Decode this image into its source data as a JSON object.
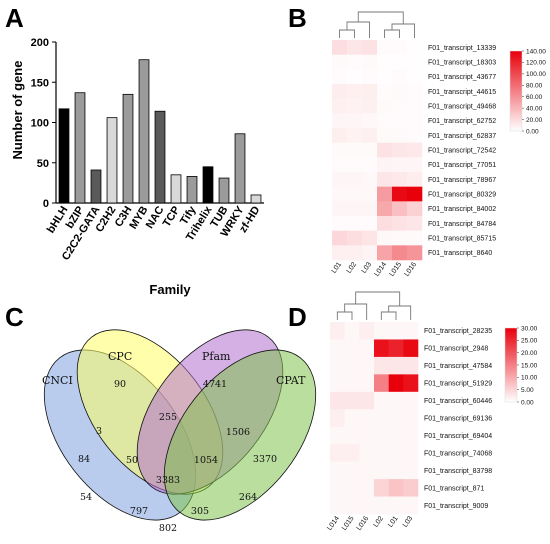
{
  "panels": {
    "a": "A",
    "b": "B",
    "c": "C",
    "d": "D"
  },
  "colors": {
    "black": "#000000",
    "dark_gray": "#5a5a5a",
    "mid_gray": "#9b9b9b",
    "light_gray": "#d9d9d9",
    "heat_low": "#ffffff",
    "heat_high": "#e8000b",
    "venn_cnci": "#7fa3e0",
    "venn_cpc": "#ffff66",
    "venn_pfam": "#b36fd0",
    "venn_cpat": "#7fc24f"
  },
  "chart_data": [
    {
      "type": "bar",
      "categories": [
        "bHLH",
        "bZIP",
        "C2C2-GATA",
        "C2H2",
        "C3H",
        "MYB",
        "NAC",
        "TCP",
        "Tify",
        "Trihelix",
        "TUB",
        "WRKY",
        "zf-HD"
      ],
      "values": [
        117,
        137,
        41,
        106,
        135,
        178,
        114,
        35,
        33,
        45,
        31,
        86,
        10
      ],
      "bar_colors": [
        "black",
        "mid_gray",
        "dark_gray",
        "light_gray",
        "mid_gray",
        "mid_gray",
        "dark_gray",
        "light_gray",
        "mid_gray",
        "black",
        "mid_gray",
        "mid_gray",
        "light_gray"
      ],
      "xlabel": "Family",
      "ylabel": "Number of gene",
      "ylim": [
        0,
        200
      ],
      "yticks": [
        0,
        50,
        100,
        150,
        200
      ]
    },
    {
      "type": "heatmap",
      "columns": [
        "L01",
        "L02",
        "L03",
        "L014",
        "L015",
        "L016"
      ],
      "rows": [
        "F01_transcript_13339",
        "F01_transcript_18303",
        "F01_transcript_43677",
        "F01_transcript_44615",
        "F01_transcript_49468",
        "F01_transcript_62752",
        "F01_transcript_62837",
        "F01_transcript_72542",
        "F01_transcript_77051",
        "F01_transcript_78967",
        "F01_transcript_80329",
        "F01_transcript_84002",
        "F01_transcript_84784",
        "F01_transcript_85715",
        "F01_transcript_8640"
      ],
      "values": [
        [
          18,
          14,
          16,
          2,
          2,
          1
        ],
        [
          3,
          2,
          3,
          1,
          1,
          1
        ],
        [
          2,
          1,
          2,
          1,
          2,
          1
        ],
        [
          10,
          8,
          9,
          2,
          3,
          2
        ],
        [
          8,
          7,
          8,
          3,
          2,
          2
        ],
        [
          5,
          5,
          4,
          2,
          2,
          2
        ],
        [
          9,
          7,
          8,
          3,
          3,
          2
        ],
        [
          3,
          3,
          3,
          16,
          14,
          12
        ],
        [
          2,
          2,
          2,
          6,
          5,
          5
        ],
        [
          5,
          5,
          4,
          14,
          12,
          10
        ],
        [
          4,
          4,
          4,
          55,
          135,
          140
        ],
        [
          5,
          5,
          5,
          48,
          35,
          25
        ],
        [
          2,
          2,
          2,
          18,
          16,
          14
        ],
        [
          22,
          18,
          15,
          4,
          3,
          3
        ],
        [
          8,
          8,
          6,
          50,
          65,
          58
        ]
      ],
      "colorbar_ticks": [
        "140.00",
        "120.00",
        "100.00",
        "80.00",
        "60.00",
        "40.00",
        "20.00",
        "0.00"
      ],
      "vmin": 0,
      "vmax": 140
    },
    {
      "type": "venn",
      "sets": [
        "CNCI",
        "CPC",
        "Pfam",
        "CPAT"
      ],
      "regions": {
        "CNCI_only": 84,
        "CPC_only": 90,
        "Pfam_only": 4741,
        "CPAT_only": 3370,
        "CNCI_CPC": 3,
        "CPC_Pfam": 255,
        "Pfam_CPAT": 1506,
        "CNCI_CPAT": 802,
        "CNCI_CPC_Pfam": 50,
        "CPC_Pfam_CPAT": 1054,
        "CNCI_Pfam": 54,
        "CPC_CPAT": 264,
        "CNCI_Pfam_CPAT": 797,
        "CNCI_CPC_CPAT": 305,
        "all": 3383
      }
    },
    {
      "type": "heatmap",
      "columns": [
        "L014",
        "L015",
        "L016",
        "L02",
        "L01",
        "L03"
      ],
      "rows": [
        "F01_transcript_28235",
        "F01_transcript_2948",
        "F01_transcript_47584",
        "F01_transcript_51929",
        "F01_transcript_60446",
        "F01_transcript_69136",
        "F01_transcript_69404",
        "F01_transcript_74068",
        "F01_transcript_83798",
        "F01_transcript_871",
        "F01_transcript_9009"
      ],
      "values": [
        [
          2,
          1,
          2,
          1,
          1,
          1
        ],
        [
          1,
          1,
          1,
          28,
          26,
          29
        ],
        [
          1,
          1,
          1,
          3,
          3,
          3
        ],
        [
          1,
          1,
          1,
          15,
          30,
          28
        ],
        [
          3,
          3,
          3,
          1,
          1,
          1
        ],
        [
          2,
          1,
          1,
          1,
          1,
          1
        ],
        [
          1,
          1,
          1,
          1,
          1,
          1
        ],
        [
          2,
          2,
          1,
          1,
          1,
          1
        ],
        [
          1,
          1,
          1,
          1,
          1,
          1
        ],
        [
          1,
          1,
          1,
          5,
          7,
          6
        ],
        [
          1,
          1,
          1,
          1,
          1,
          1
        ]
      ],
      "colorbar_ticks": [
        "30.00",
        "25.00",
        "20.00",
        "15.00",
        "10.00",
        "5.00",
        "0.00"
      ],
      "vmin": 0,
      "vmax": 30
    }
  ]
}
